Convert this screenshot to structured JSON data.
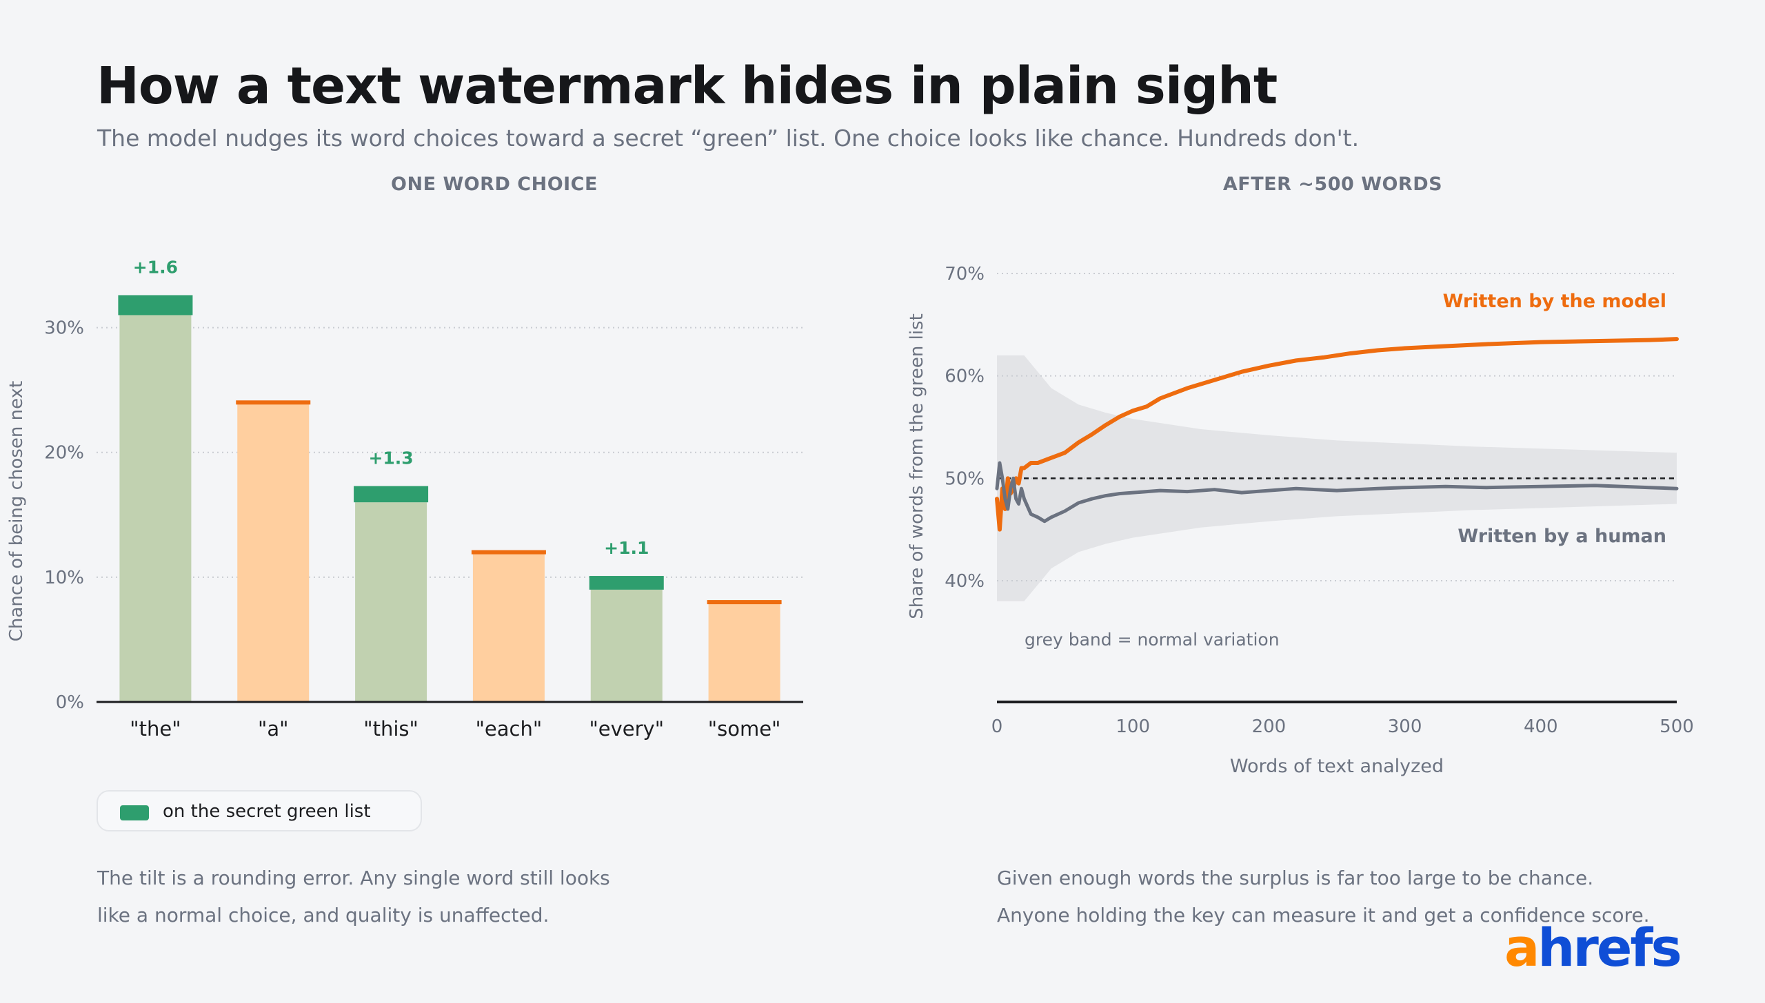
{
  "header": {
    "title": "How a text watermark hides in plain sight",
    "subtitle": "The model nudges its word choices toward a secret “green” list. One choice looks like chance. Hundreds don't."
  },
  "left_panel": {
    "title": "ONE WORD CHOICE",
    "legend_label": "on the secret green list",
    "caption_lines": [
      "The tilt is a rounding error. Any single word still looks",
      "like a normal choice, and quality is unaffected."
    ]
  },
  "right_panel": {
    "title": "AFTER ~500 WORDS",
    "band_note": "grey band = normal variation",
    "caption_lines": [
      "Given enough words the surplus is far too large to be chance.",
      "Anyone holding the key can measure it and get a confidence score."
    ]
  },
  "brand": {
    "logo_text": "ahrefs",
    "logo_accent": "#ff8800",
    "logo_color": "#0f4ed6"
  },
  "colors": {
    "green": "#2e9e6e",
    "green_light": "#c1d1b0",
    "orange": "#ee6c0f",
    "orange_light": "#ffcf9f",
    "human": "#6b7280",
    "band": "#e3e4e7"
  },
  "chart_data": [
    {
      "type": "bar",
      "title": "ONE WORD CHOICE",
      "ylabel": "Chance of being chosen next",
      "ylim": [
        0,
        35
      ],
      "yticks": [
        0,
        10,
        20,
        30
      ],
      "ytick_labels": [
        "0%",
        "10%",
        "20%",
        "30%"
      ],
      "categories": [
        "\"the\"",
        "\"a\"",
        "\"this\"",
        "\"each\"",
        "\"every\"",
        "\"some\""
      ],
      "series": [
        {
          "values": [
            31.0,
            24.0,
            16.0,
            12.0,
            9.0,
            8.0
          ]
        },
        {
          "values": [
            1.6,
            0,
            1.3,
            0,
            1.1,
            0
          ]
        }
      ],
      "on_green_list": [
        true,
        false,
        true,
        false,
        true,
        false
      ],
      "data_labels": [
        "+1.6",
        "",
        "+1.3",
        "",
        "+1.1",
        ""
      ],
      "grid": true
    },
    {
      "type": "line",
      "title": "AFTER ~500 WORDS",
      "xlabel": "Words of text analyzed",
      "ylabel": "Share of words from the green list",
      "xlim": [
        0,
        500
      ],
      "ylim": [
        30,
        72
      ],
      "xticks": [
        0,
        100,
        200,
        300,
        400,
        500
      ],
      "yticks": [
        40,
        50,
        60,
        70
      ],
      "ytick_labels": [
        "40%",
        "50%",
        "60%",
        "70%"
      ],
      "reference_line": 50,
      "band": {
        "x": [
          0,
          20,
          40,
          60,
          80,
          100,
          150,
          200,
          250,
          300,
          350,
          400,
          450,
          500
        ],
        "lower": [
          38,
          38,
          41.2,
          42.8,
          43.6,
          44.2,
          45.2,
          45.8,
          46.3,
          46.6,
          46.9,
          47.1,
          47.3,
          47.5
        ],
        "upper": [
          62,
          62,
          58.8,
          57.2,
          56.4,
          55.8,
          54.8,
          54.2,
          53.7,
          53.4,
          53.1,
          52.9,
          52.7,
          52.5
        ]
      },
      "series": [
        {
          "name": "Written by the model",
          "x": [
            0,
            2,
            4,
            6,
            8,
            10,
            12,
            14,
            16,
            18,
            20,
            25,
            30,
            40,
            50,
            60,
            70,
            80,
            90,
            100,
            110,
            120,
            140,
            160,
            180,
            200,
            220,
            240,
            260,
            280,
            300,
            330,
            360,
            400,
            440,
            480,
            500
          ],
          "y": [
            48,
            45,
            49,
            47,
            50,
            48.5,
            49,
            50,
            49.5,
            51,
            51,
            51.5,
            51.5,
            52,
            52.5,
            53.5,
            54.3,
            55.2,
            56,
            56.6,
            57,
            57.8,
            58.8,
            59.6,
            60.4,
            61,
            61.5,
            61.8,
            62.2,
            62.5,
            62.7,
            62.9,
            63.1,
            63.3,
            63.4,
            63.5,
            63.6
          ]
        },
        {
          "name": "Written by a human",
          "x": [
            0,
            2,
            4,
            6,
            8,
            10,
            12,
            14,
            16,
            18,
            20,
            25,
            30,
            35,
            40,
            50,
            60,
            70,
            80,
            90,
            100,
            120,
            140,
            160,
            180,
            200,
            220,
            250,
            280,
            300,
            330,
            360,
            400,
            440,
            480,
            500
          ],
          "y": [
            49,
            51.5,
            50,
            48,
            47,
            49,
            50,
            48,
            47.5,
            49,
            48,
            46.5,
            46.2,
            45.8,
            46.2,
            46.8,
            47.6,
            48,
            48.3,
            48.5,
            48.6,
            48.8,
            48.7,
            48.9,
            48.6,
            48.8,
            49,
            48.8,
            49,
            49.1,
            49.2,
            49.1,
            49.2,
            49.3,
            49.1,
            49
          ]
        }
      ],
      "grid": true
    }
  ]
}
